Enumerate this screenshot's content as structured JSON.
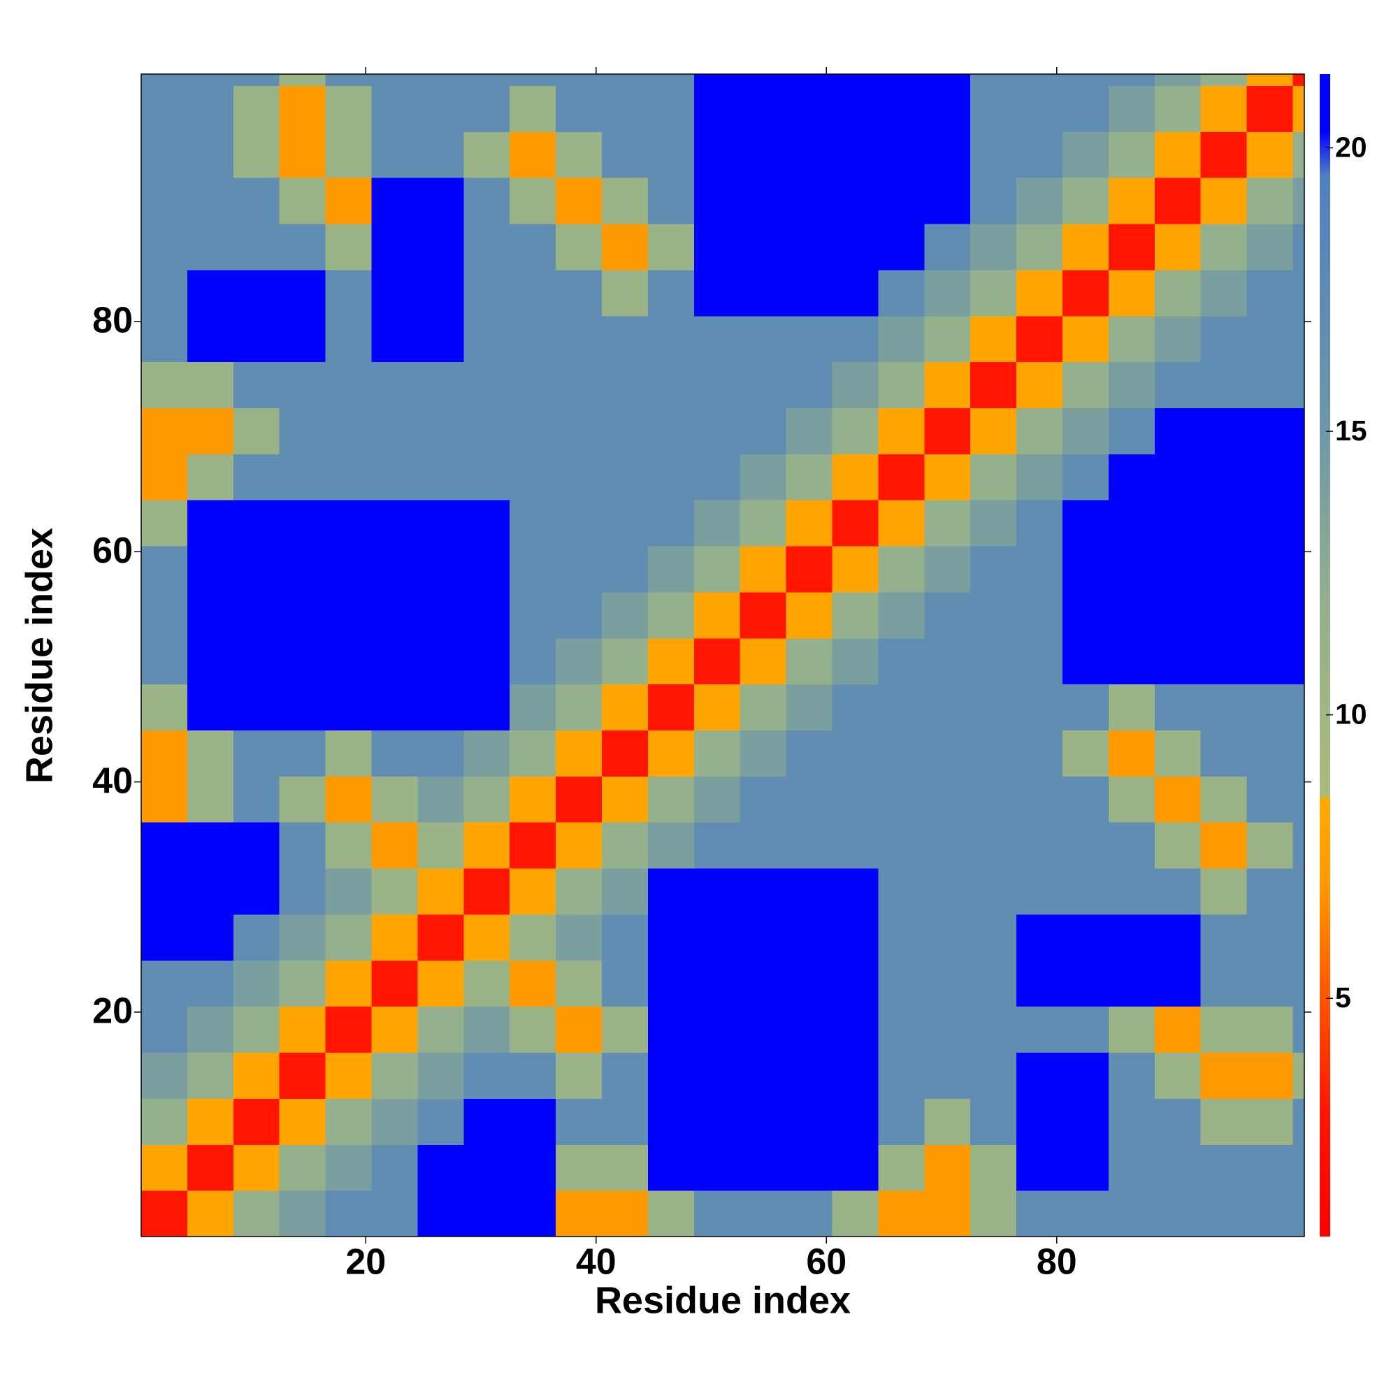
{
  "chart_data": {
    "type": "heatmap",
    "xlabel": "Residue index",
    "ylabel": "Residue index",
    "x_bins": [
      0.5,
      4.5,
      8.5,
      12.5,
      16.5,
      20.5,
      24.5,
      28.5,
      32.5,
      36.5,
      40.5,
      44.5,
      48.5,
      52.5,
      56.5,
      60.5,
      64.5,
      68.5,
      72.5,
      76.5,
      80.5,
      84.5,
      88.5,
      92.5,
      96.5,
      100.5,
      101.5
    ],
    "y_bins": [
      0.5,
      4.5,
      8.5,
      12.5,
      16.5,
      20.5,
      24.5,
      28.5,
      32.5,
      36.5,
      40.5,
      44.5,
      48.5,
      52.5,
      56.5,
      60.5,
      64.5,
      68.5,
      72.5,
      76.5,
      80.5,
      84.5,
      88.5,
      92.5,
      96.5,
      100.5,
      101.5
    ],
    "xlim": [
      0.5,
      101.5
    ],
    "ylim": [
      0.5,
      101.5
    ],
    "xticks": [
      20,
      40,
      60,
      80
    ],
    "yticks": [
      20,
      40,
      60,
      80
    ],
    "clim": [
      0.8,
      21.3
    ],
    "cticks": [
      5,
      10,
      15,
      20
    ],
    "colorscale": [
      [
        0.8,
        "#ff0000"
      ],
      [
        3,
        "#ff1500"
      ],
      [
        5,
        "#ff5500"
      ],
      [
        7,
        "#ff9900"
      ],
      [
        8.5,
        "#ffaa00"
      ],
      [
        8.6,
        "#a9bb7c"
      ],
      [
        12,
        "#94b08c"
      ],
      [
        15,
        "#6f97a8"
      ],
      [
        19.5,
        "#5080c0"
      ],
      [
        20.3,
        "#0000ff"
      ],
      [
        21.3,
        "#0000ff"
      ]
    ],
    "z": [
      [
        3,
        8,
        12,
        14,
        17,
        17,
        22,
        22,
        22,
        7,
        7,
        11,
        17,
        17,
        17,
        11,
        7,
        7,
        11,
        17,
        17,
        17,
        17,
        17,
        17,
        17
      ],
      [
        8,
        3,
        8,
        12,
        14,
        17,
        22,
        22,
        22,
        11,
        11,
        22,
        22,
        22,
        22,
        22,
        11,
        7,
        11,
        22,
        22,
        17,
        17,
        17,
        17,
        17
      ],
      [
        12,
        8,
        3,
        8,
        12,
        14,
        17,
        22,
        22,
        17,
        17,
        22,
        22,
        22,
        22,
        22,
        17,
        11,
        17,
        22,
        22,
        17,
        17,
        11,
        11,
        17
      ],
      [
        14,
        12,
        8,
        3,
        8,
        12,
        14,
        17,
        17,
        11,
        17,
        22,
        22,
        22,
        22,
        22,
        17,
        17,
        17,
        22,
        22,
        17,
        11,
        7,
        7,
        11
      ],
      [
        17,
        14,
        12,
        8,
        3,
        8,
        12,
        14,
        11,
        7,
        11,
        22,
        22,
        22,
        22,
        22,
        17,
        17,
        17,
        17,
        17,
        11,
        7,
        11,
        11,
        17
      ],
      [
        17,
        17,
        14,
        12,
        8,
        3,
        8,
        11,
        7,
        11,
        17,
        22,
        22,
        22,
        22,
        22,
        17,
        17,
        17,
        22,
        22,
        22,
        22,
        17,
        17,
        17
      ],
      [
        22,
        22,
        17,
        14,
        12,
        8,
        3,
        8,
        11,
        14,
        17,
        22,
        22,
        22,
        22,
        22,
        17,
        17,
        17,
        22,
        22,
        22,
        22,
        17,
        17,
        17
      ],
      [
        22,
        22,
        22,
        17,
        14,
        11,
        8,
        3,
        8,
        12,
        14,
        22,
        22,
        22,
        22,
        22,
        17,
        17,
        17,
        17,
        17,
        17,
        17,
        11,
        17,
        17
      ],
      [
        22,
        22,
        22,
        17,
        11,
        7,
        11,
        8,
        3,
        8,
        12,
        14,
        17,
        17,
        17,
        17,
        17,
        17,
        17,
        17,
        17,
        17,
        11,
        7,
        11,
        17
      ],
      [
        7,
        11,
        17,
        11,
        7,
        11,
        14,
        12,
        8,
        3,
        8,
        12,
        14,
        17,
        17,
        17,
        17,
        17,
        17,
        17,
        17,
        11,
        7,
        11,
        17,
        17
      ],
      [
        7,
        11,
        17,
        17,
        11,
        17,
        17,
        14,
        12,
        8,
        3,
        8,
        12,
        14,
        17,
        17,
        17,
        17,
        17,
        17,
        11,
        7,
        11,
        17,
        17,
        17
      ],
      [
        11,
        22,
        22,
        22,
        22,
        22,
        22,
        22,
        14,
        12,
        8,
        3,
        8,
        12,
        14,
        17,
        17,
        17,
        17,
        17,
        17,
        11,
        17,
        17,
        17,
        17
      ],
      [
        17,
        22,
        22,
        22,
        22,
        22,
        22,
        22,
        17,
        14,
        12,
        8,
        3,
        8,
        12,
        14,
        17,
        17,
        17,
        17,
        22,
        22,
        22,
        22,
        22,
        22
      ],
      [
        17,
        22,
        22,
        22,
        22,
        22,
        22,
        22,
        17,
        17,
        14,
        12,
        8,
        3,
        8,
        12,
        14,
        17,
        17,
        17,
        22,
        22,
        22,
        22,
        22,
        22
      ],
      [
        17,
        22,
        22,
        22,
        22,
        22,
        22,
        22,
        17,
        17,
        17,
        14,
        12,
        8,
        3,
        8,
        12,
        14,
        17,
        17,
        22,
        22,
        22,
        22,
        22,
        22
      ],
      [
        11,
        22,
        22,
        22,
        22,
        22,
        22,
        22,
        17,
        17,
        17,
        17,
        14,
        12,
        8,
        3,
        8,
        12,
        14,
        17,
        22,
        22,
        22,
        22,
        22,
        22
      ],
      [
        7,
        11,
        17,
        17,
        17,
        17,
        17,
        17,
        17,
        17,
        17,
        17,
        17,
        14,
        12,
        8,
        3,
        8,
        12,
        14,
        17,
        22,
        22,
        22,
        22,
        22
      ],
      [
        7,
        7,
        11,
        17,
        17,
        17,
        17,
        17,
        17,
        17,
        17,
        17,
        17,
        17,
        14,
        12,
        8,
        3,
        8,
        12,
        14,
        17,
        22,
        22,
        22,
        22
      ],
      [
        11,
        11,
        17,
        17,
        17,
        17,
        17,
        17,
        17,
        17,
        17,
        17,
        17,
        17,
        17,
        14,
        12,
        8,
        3,
        8,
        12,
        14,
        17,
        17,
        17,
        17
      ],
      [
        17,
        22,
        22,
        22,
        17,
        22,
        22,
        17,
        17,
        17,
        17,
        17,
        17,
        17,
        17,
        17,
        14,
        12,
        8,
        3,
        8,
        12,
        14,
        17,
        17,
        17
      ],
      [
        17,
        22,
        22,
        22,
        17,
        22,
        22,
        17,
        17,
        17,
        11,
        17,
        22,
        22,
        22,
        22,
        17,
        14,
        12,
        8,
        3,
        8,
        12,
        14,
        17,
        17
      ],
      [
        17,
        17,
        17,
        17,
        11,
        22,
        22,
        17,
        17,
        11,
        7,
        11,
        22,
        22,
        22,
        22,
        22,
        17,
        14,
        12,
        8,
        3,
        8,
        12,
        14,
        17
      ],
      [
        17,
        17,
        17,
        11,
        7,
        22,
        22,
        17,
        11,
        7,
        11,
        17,
        22,
        22,
        22,
        22,
        22,
        22,
        17,
        14,
        12,
        8,
        3,
        8,
        12,
        14
      ],
      [
        17,
        17,
        11,
        7,
        11,
        17,
        17,
        11,
        7,
        11,
        17,
        17,
        22,
        22,
        22,
        22,
        22,
        22,
        17,
        17,
        14,
        12,
        8,
        3,
        8,
        12
      ],
      [
        17,
        17,
        11,
        7,
        11,
        17,
        17,
        17,
        11,
        17,
        17,
        17,
        22,
        22,
        22,
        22,
        22,
        22,
        17,
        17,
        17,
        14,
        12,
        8,
        3,
        8
      ],
      [
        17,
        17,
        17,
        11,
        17,
        17,
        17,
        17,
        17,
        17,
        17,
        17,
        22,
        22,
        22,
        22,
        22,
        22,
        17,
        17,
        17,
        17,
        14,
        12,
        8,
        3
      ]
    ]
  }
}
